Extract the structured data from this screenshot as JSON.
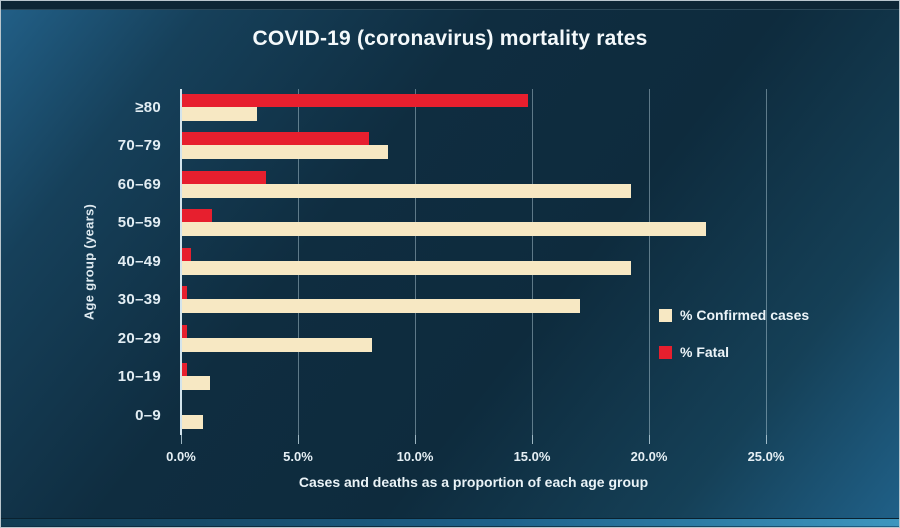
{
  "chart_data": {
    "type": "bar",
    "orientation": "horizontal",
    "title": "COVID-19 (coronavirus) mortality rates",
    "xlabel": "Cases and deaths as a proportion of each age group",
    "ylabel": "Age group (years)",
    "categories": [
      "≥80",
      "70–79",
      "60–69",
      "50–59",
      "40–49",
      "30–39",
      "20–29",
      "10–19",
      "0–9"
    ],
    "series": [
      {
        "name": "% Confirmed cases",
        "color": "#f7e8c3",
        "values": [
          3.2,
          8.8,
          19.2,
          22.4,
          19.2,
          17.0,
          8.1,
          1.2,
          0.9
        ]
      },
      {
        "name": "% Fatal",
        "color": "#e71f2e",
        "values": [
          14.8,
          8.0,
          3.6,
          1.3,
          0.4,
          0.2,
          0.2,
          0.2,
          0
        ]
      }
    ],
    "x_ticks": [
      "0.0%",
      "5.0%",
      "10.0%",
      "15.0%",
      "20.0%",
      "25.0%"
    ],
    "xlim": [
      0,
      25
    ],
    "grid": "vertical",
    "legend_position": "middle-right",
    "background": "dark-blue-gradient",
    "colors": {
      "confirmed": "#f7e8c3",
      "fatal": "#e71f2e",
      "text": "#ecf4f8",
      "gridline": "rgba(205,228,238,0.42)"
    }
  }
}
